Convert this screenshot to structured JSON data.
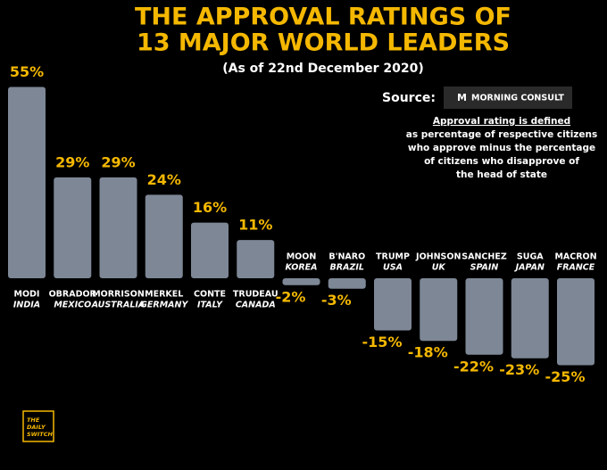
{
  "header": {
    "title_lines": [
      "THE APPROVAL RATINGS OF",
      "13 MAJOR WORLD LEADERS"
    ],
    "subtitle": "(As of 22nd December 2020)",
    "source_label": "Source:",
    "source_name": "MORNING CONSULT",
    "note_lines": [
      "Approval rating is defined",
      "as percentage of respective citizens",
      "who approve minus the percentage",
      "of citizens who disapprove of",
      "the head of state"
    ],
    "logo_lines": [
      "THE",
      "DAILY",
      "SWITCH"
    ]
  },
  "chart_data": {
    "type": "bar",
    "categories": [
      "MODI",
      "OBRADOR",
      "MORRISON",
      "MERKEL",
      "CONTE",
      "TRUDEAU",
      "MOON",
      "B'NARO",
      "TRUMP",
      "JOHNSON",
      "SANCHEZ",
      "SUGA",
      "MACRON"
    ],
    "countries": [
      "INDIA",
      "MEXICO",
      "AUSTRALIA",
      "GERMANY",
      "ITALY",
      "CANADA",
      "KOREA",
      "BRAZIL",
      "USA",
      "UK",
      "SPAIN",
      "JAPAN",
      "FRANCE"
    ],
    "values": [
      55,
      29,
      29,
      24,
      16,
      11,
      -2,
      -3,
      -15,
      -18,
      -22,
      -23,
      -25
    ],
    "value_labels": [
      "55%",
      "29%",
      "29%",
      "24%",
      "16%",
      "11%",
      "-2%",
      "-3%",
      "-15%",
      "-18%",
      "-22%",
      "-23%",
      "-25%"
    ],
    "color": "#7d8796",
    "label_color": "#f5b800"
  }
}
